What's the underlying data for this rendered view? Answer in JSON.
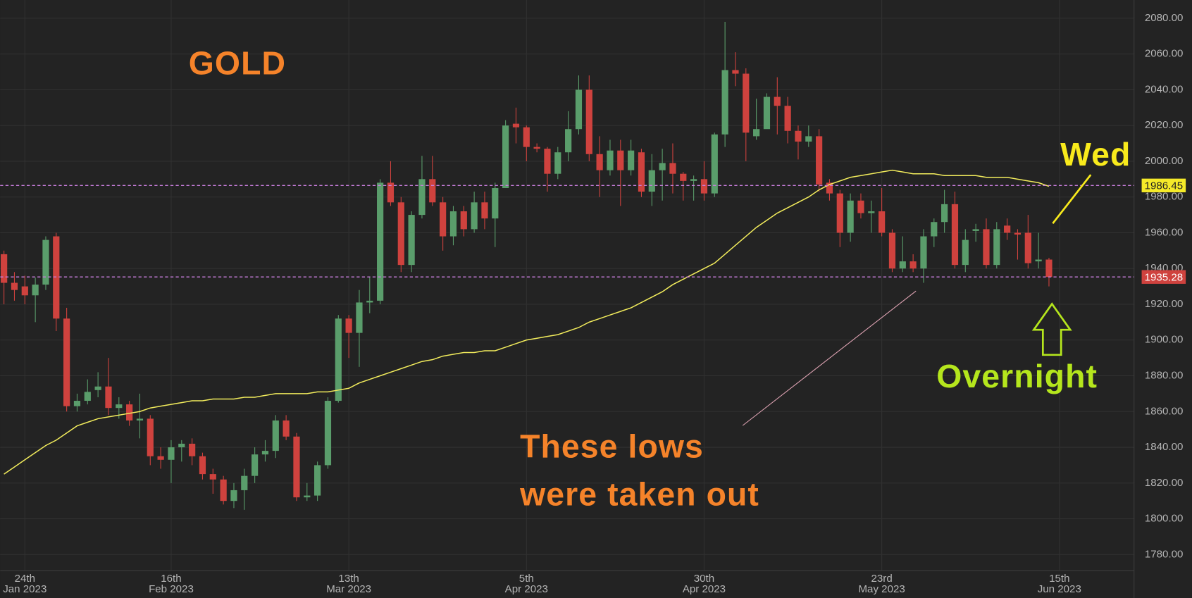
{
  "chart_data": {
    "type": "candlestick",
    "open": [
      1948,
      1932,
      1930,
      1925,
      1931,
      1958,
      1912,
      1863,
      1866,
      1872,
      1874,
      1862,
      1864,
      1855,
      1856,
      1835,
      1833,
      1840,
      1842,
      1835,
      1825,
      1822,
      1810,
      1816,
      1824,
      1836,
      1838,
      1855,
      1846,
      1812,
      1813,
      1830,
      1866,
      1912,
      1904,
      1921,
      1922,
      1988,
      1977,
      1942,
      1970,
      1990,
      1977,
      1958,
      1972,
      1962,
      1977,
      1968,
      1985,
      2021,
      2019,
      2008,
      2007,
      1993,
      2005,
      2018,
      2040,
      2004,
      1995,
      2006,
      1995,
      2005,
      1983,
      1995,
      1999,
      1993,
      1989,
      1990,
      1982,
      2015,
      2051,
      2049,
      2014,
      2018,
      2036,
      2031,
      2017,
      2011,
      2014,
      1988,
      1982,
      1960,
      1978,
      1971,
      1972,
      1960,
      1940,
      1944,
      1940,
      1958,
      1966,
      1976,
      1942,
      1961,
      1962,
      1942,
      1964,
      1960,
      1960,
      1944,
      1945
    ],
    "high": [
      1950,
      1938,
      1936,
      1935,
      1958,
      1960,
      1918,
      1870,
      1878,
      1882,
      1890,
      1868,
      1866,
      1870,
      1858,
      1840,
      1844,
      1844,
      1845,
      1837,
      1828,
      1824,
      1820,
      1828,
      1840,
      1844,
      1858,
      1858,
      1848,
      1820,
      1832,
      1868,
      1914,
      1914,
      1928,
      1935,
      1990,
      2000,
      1980,
      1972,
      2003,
      2003,
      1980,
      1975,
      1975,
      1983,
      1983,
      1988,
      2023,
      2030,
      2020,
      2010,
      2008,
      2008,
      2028,
      2048,
      2048,
      2014,
      2012,
      2012,
      2012,
      2007,
      2004,
      2007,
      2010,
      1994,
      1992,
      2000,
      2016,
      2078,
      2061,
      2052,
      2035,
      2038,
      2047,
      2036,
      2020,
      2020,
      2018,
      1990,
      1984,
      1982,
      1982,
      1978,
      1985,
      1962,
      1958,
      1948,
      1962,
      1968,
      1984,
      1983,
      1962,
      1965,
      1968,
      1966,
      1968,
      1962,
      1970,
      1960,
      1946
    ],
    "low": [
      1920,
      1922,
      1920,
      1910,
      1928,
      1905,
      1860,
      1860,
      1864,
      1868,
      1858,
      1856,
      1852,
      1845,
      1830,
      1828,
      1820,
      1832,
      1830,
      1822,
      1814,
      1808,
      1806,
      1805,
      1820,
      1832,
      1834,
      1844,
      1810,
      1810,
      1810,
      1828,
      1865,
      1890,
      1885,
      1915,
      1920,
      1975,
      1938,
      1938,
      1968,
      1975,
      1950,
      1953,
      1958,
      1960,
      1962,
      1952,
      1985,
      2010,
      2000,
      2005,
      1983,
      1990,
      2000,
      2015,
      2000,
      1980,
      1992,
      1975,
      1992,
      1980,
      1975,
      1978,
      1982,
      1978,
      1978,
      1978,
      1980,
      2008,
      2042,
      2000,
      2012,
      2020,
      2015,
      2010,
      2001,
      2008,
      1983,
      1978,
      1952,
      1955,
      1968,
      1960,
      1958,
      1938,
      1938,
      1938,
      1932,
      1952,
      1960,
      1940,
      1938,
      1955,
      1940,
      1940,
      1956,
      1945,
      1940,
      1940,
      1930
    ],
    "close": [
      1932,
      1928,
      1925,
      1931,
      1956,
      1912,
      1863,
      1866,
      1871,
      1874,
      1862,
      1864,
      1855,
      1856,
      1835,
      1833,
      1840,
      1842,
      1835,
      1825,
      1822,
      1810,
      1816,
      1824,
      1836,
      1838,
      1855,
      1846,
      1812,
      1813,
      1830,
      1866,
      1912,
      1904,
      1921,
      1922,
      1988,
      1977,
      1942,
      1970,
      1990,
      1977,
      1958,
      1972,
      1962,
      1977,
      1968,
      1985,
      2020,
      2019,
      2008,
      2007,
      1993,
      2005,
      2018,
      2040,
      2004,
      1995,
      2006,
      1995,
      2006,
      1983,
      1995,
      1999,
      1993,
      1989,
      1990,
      1982,
      2015,
      2051,
      2049,
      2016,
      2018,
      2036,
      2031,
      2017,
      2011,
      2014,
      1987,
      1982,
      1960,
      1978,
      1971,
      1972,
      1960,
      1940,
      1944,
      1940,
      1958,
      1966,
      1976,
      1942,
      1956,
      1962,
      1942,
      1962,
      1960,
      1959,
      1943,
      1945,
      1935.28
    ],
    "up_color": "#5a9d6b",
    "down_color": "#cf423e",
    "sma": {
      "color": "#f2ec5c",
      "values": [
        1825,
        1829,
        1833,
        1837,
        1841,
        1844,
        1848,
        1852,
        1854,
        1856,
        1857,
        1858,
        1859,
        1860,
        1862,
        1863,
        1864,
        1865,
        1866,
        1866,
        1867,
        1867,
        1867,
        1868,
        1868,
        1869,
        1870,
        1870,
        1870,
        1870,
        1871,
        1871,
        1872,
        1873,
        1876,
        1878,
        1880,
        1882,
        1884,
        1886,
        1888,
        1889,
        1891,
        1892,
        1893,
        1893,
        1894,
        1894,
        1896,
        1898,
        1900,
        1901,
        1902,
        1903,
        1905,
        1907,
        1910,
        1912,
        1914,
        1916,
        1918,
        1921,
        1924,
        1927,
        1931,
        1934,
        1937,
        1940,
        1943,
        1948,
        1953,
        1958,
        1963,
        1967,
        1971,
        1974,
        1977,
        1980,
        1984,
        1987,
        1989,
        1991,
        1992,
        1993,
        1994,
        1995,
        1994,
        1993,
        1993,
        1993,
        1992,
        1992,
        1992,
        1992,
        1991,
        1991,
        1991,
        1990,
        1989,
        1988,
        1986
      ]
    },
    "hlines": [
      {
        "value": 1986.45,
        "color": "#c77ddb",
        "label_bg": "#f5ea29",
        "label_color": "#222222"
      },
      {
        "value": 1935.28,
        "color": "#c77ddb",
        "label_bg": "#cf423e",
        "label_color": "#ffffff"
      }
    ],
    "xlim": [
      -0.3636,
      108.145
    ],
    "xticks": [
      {
        "value": 2,
        "label": "24th\nJan 2023"
      },
      {
        "value": 16,
        "label": "16th\nFeb 2023"
      },
      {
        "value": 33,
        "label": "13th\nMar 2023"
      },
      {
        "value": 50,
        "label": "5th\nApr 2023"
      },
      {
        "value": 67,
        "label": "30th\nApr 2023"
      },
      {
        "value": 84,
        "label": "23rd\nMay 2023"
      },
      {
        "value": 101,
        "label": "15th\nJun 2023"
      }
    ],
    "ylim": [
      1771,
      2090.2
    ],
    "yticks": [
      {
        "value": 1780,
        "label": "1780.00"
      },
      {
        "value": 1800,
        "label": "1800.00"
      },
      {
        "value": 1820,
        "label": "1820.00"
      },
      {
        "value": 1840,
        "label": "1840.00"
      },
      {
        "value": 1860,
        "label": "1860.00"
      },
      {
        "value": 1880,
        "label": "1880.00"
      },
      {
        "value": 1900,
        "label": "1900.00"
      },
      {
        "value": 1920,
        "label": "1920.00"
      },
      {
        "value": 1940,
        "label": "1940.00"
      },
      {
        "value": 1960,
        "label": "1960.00"
      },
      {
        "value": 1980,
        "label": "1980.00"
      },
      {
        "value": 2000,
        "label": "2000.00"
      },
      {
        "value": 2020,
        "label": "2020.00"
      },
      {
        "value": 2040,
        "label": "2040.00"
      },
      {
        "value": 2060,
        "label": "2060.00"
      },
      {
        "value": 2080,
        "label": "2080.00"
      }
    ],
    "grid": true,
    "annotations": [
      {
        "text": "GOLD",
        "color": "#f5832a"
      },
      {
        "text": "Wed",
        "color": "#f8ea1c"
      },
      {
        "text": "Overnight",
        "color": "#b5e61d"
      },
      {
        "text": "These lows",
        "color": "#f5832a"
      },
      {
        "text": "were taken out",
        "color": "#f5832a"
      }
    ]
  }
}
